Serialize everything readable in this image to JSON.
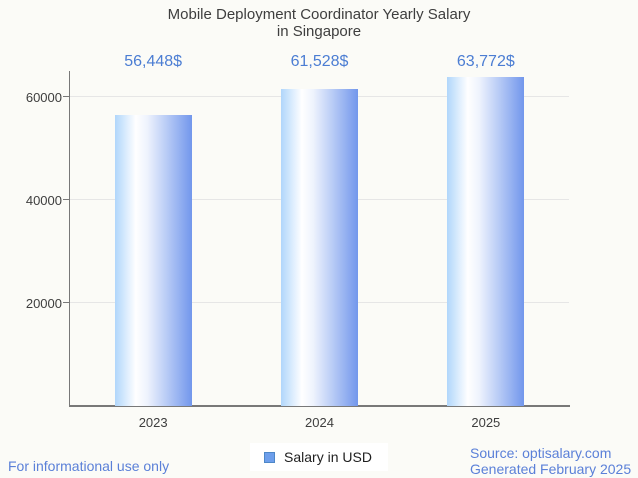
{
  "page": {
    "background": "#fbfbf7"
  },
  "title_lines": [
    "Mobile Deployment Coordinator Yearly Salary",
    "in Singapore"
  ],
  "legend": {
    "label": "Salary in USD",
    "swatch_fill": "#6d9eeb",
    "swatch_border": "#4d87c7"
  },
  "footer": {
    "disclaimer": "For informational use only",
    "source_line1": "Source: optisalary.com",
    "source_line2": "Generated February 2025"
  },
  "chart_data": {
    "type": "bar",
    "title": "Mobile Deployment Coordinator Yearly Salary in Singapore",
    "categories": [
      "2023",
      "2024",
      "2025"
    ],
    "series": [
      {
        "name": "Salary in USD",
        "values": [
          56448,
          61528,
          63772
        ]
      }
    ],
    "value_labels": [
      "56,448$",
      "61,528$",
      "63,772$"
    ],
    "xlabel": "",
    "ylabel": "",
    "ylim": [
      0,
      65000
    ],
    "yticks": [
      20000,
      40000,
      60000
    ],
    "ytick_labels": [
      "20000",
      "40000",
      "60000"
    ],
    "grid": true,
    "legend_position": "bottom",
    "colors": {
      "value_label": "#4b7dd3",
      "bar_gradient": [
        "#b0d6fb",
        "#ffffff",
        "#eef3fd",
        "#7297ec"
      ],
      "gridline": "#e6e6e6",
      "axis": "#787878",
      "text": "#3e3e3e",
      "footer_text": "#5b80d8"
    }
  }
}
